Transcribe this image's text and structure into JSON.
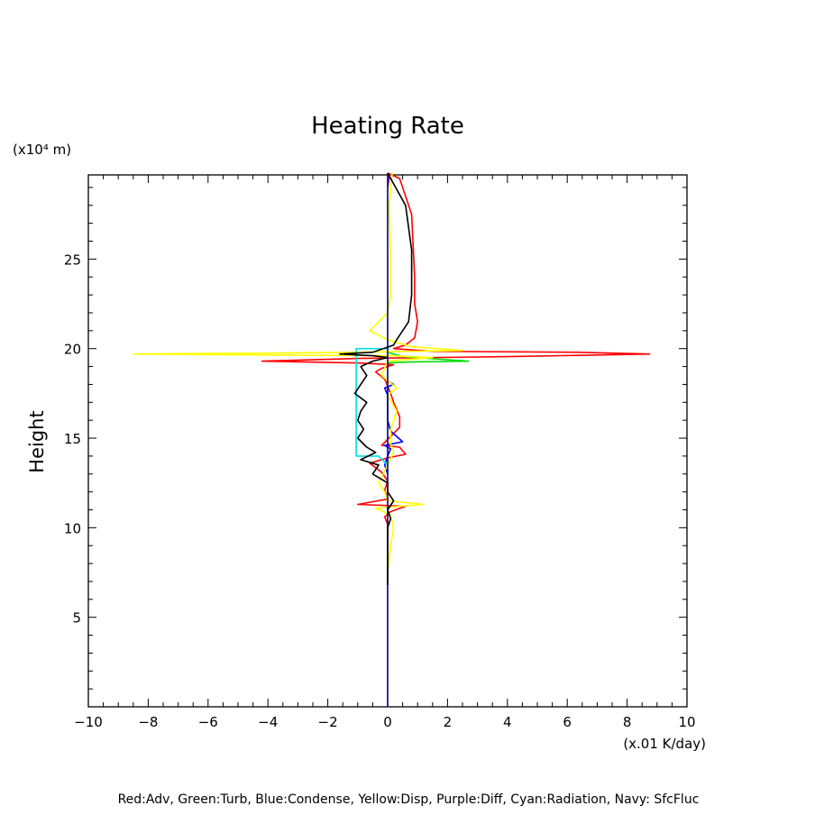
{
  "chart_data": {
    "type": "line",
    "title": "Heating Rate",
    "xlabel": "",
    "ylabel": "Height",
    "x_unit": "(x.01 K/day)",
    "y_unit": "(x10⁴ m)",
    "xlim": [
      -10,
      10
    ],
    "ylim": [
      0,
      29.7
    ],
    "xticks": [
      -10,
      -8,
      -6,
      -4,
      -2,
      0,
      2,
      4,
      6,
      8,
      10
    ],
    "yticks": [
      5,
      10,
      15,
      20,
      25
    ],
    "grid": false,
    "legend_text": "Red:Adv, Green:Turb, Blue:Condense, Yellow:Disp, Purple:Diff, Cyan:Radiation, Navy: SfcFluc",
    "legend_placement": "bottom",
    "series": [
      {
        "name": "Adv",
        "color": "#ff0000",
        "points": [
          [
            0.0,
            29.8
          ],
          [
            0.4,
            29.5
          ],
          [
            0.8,
            27.5
          ],
          [
            0.9,
            24
          ],
          [
            0.9,
            22.5
          ],
          [
            1.0,
            21.5
          ],
          [
            0.9,
            20.6
          ],
          [
            0.6,
            20.2
          ],
          [
            0.2,
            20.0
          ],
          [
            1.5,
            19.85
          ],
          [
            6.3,
            19.8
          ],
          [
            8.75,
            19.7
          ],
          [
            4.0,
            19.55
          ],
          [
            -1.0,
            19.45
          ],
          [
            -4.2,
            19.3
          ],
          [
            -1.0,
            19.2
          ],
          [
            0.2,
            19.1
          ],
          [
            -0.2,
            18.9
          ],
          [
            -0.4,
            18.7
          ],
          [
            -0.1,
            18.3
          ],
          [
            0.1,
            17.5
          ],
          [
            0.2,
            17.0
          ],
          [
            0.4,
            16.2
          ],
          [
            0.4,
            15.6
          ],
          [
            0.1,
            15.1
          ],
          [
            -0.2,
            14.6
          ],
          [
            0.4,
            14.5
          ],
          [
            0.6,
            14.1
          ],
          [
            0.0,
            13.9
          ],
          [
            -0.6,
            13.6
          ],
          [
            -0.2,
            13.1
          ],
          [
            0.0,
            12.6
          ],
          [
            -0.1,
            12.1
          ],
          [
            0.0,
            11.6
          ],
          [
            -1.0,
            11.3
          ],
          [
            0.6,
            11.2
          ],
          [
            0.1,
            10.9
          ],
          [
            -0.1,
            10.6
          ],
          [
            0.0,
            10.2
          ],
          [
            0.0,
            9.5
          ],
          [
            0.0,
            9.0
          ]
        ]
      },
      {
        "name": "Turb",
        "color": "#00dd00",
        "points": [
          [
            0.0,
            19.8
          ],
          [
            0.5,
            19.55
          ],
          [
            2.7,
            19.3
          ],
          [
            0.6,
            19.25
          ],
          [
            0.0,
            19.2
          ]
        ]
      },
      {
        "name": "Condense",
        "color": "#0000ff",
        "points": [
          [
            0.0,
            18.2
          ],
          [
            0.2,
            18.0
          ],
          [
            -0.1,
            17.8
          ],
          [
            0.0,
            17.4
          ],
          [
            0.0,
            16.0
          ],
          [
            0.1,
            15.4
          ],
          [
            0.5,
            14.8
          ],
          [
            -0.1,
            14.6
          ],
          [
            0.1,
            14.4
          ],
          [
            0.0,
            14.0
          ],
          [
            -0.1,
            13.5
          ],
          [
            0.0,
            13.0
          ]
        ]
      },
      {
        "name": "Disp",
        "color": "#ffff00",
        "points": [
          [
            0.15,
            29.8
          ],
          [
            0.05,
            28
          ],
          [
            0.1,
            25
          ],
          [
            0.1,
            23
          ],
          [
            0.0,
            22
          ],
          [
            -0.6,
            21
          ],
          [
            0.0,
            20.5
          ],
          [
            0.8,
            20.1
          ],
          [
            2.5,
            19.9
          ],
          [
            -1.0,
            19.8
          ],
          [
            -4.0,
            19.75
          ],
          [
            -8.5,
            19.7
          ],
          [
            -5.0,
            19.65
          ],
          [
            0.0,
            19.6
          ],
          [
            1.5,
            19.5
          ],
          [
            0.0,
            19.3
          ],
          [
            -0.2,
            18.5
          ],
          [
            0.3,
            17.8
          ],
          [
            0.0,
            17.4
          ],
          [
            0.3,
            16.5
          ],
          [
            0.1,
            15.5
          ],
          [
            0.1,
            14.7
          ],
          [
            0.2,
            14.2
          ],
          [
            0.0,
            13.5
          ],
          [
            -0.3,
            12.5
          ],
          [
            -0.1,
            12.0
          ],
          [
            0.0,
            11.5
          ],
          [
            1.2,
            11.3
          ],
          [
            -0.4,
            11.1
          ],
          [
            0.1,
            10.7
          ],
          [
            0.2,
            10.0
          ],
          [
            0.1,
            9.0
          ],
          [
            0.0,
            7.5
          ]
        ]
      },
      {
        "name": "Diff",
        "color": "#b000b0",
        "points": [
          [
            0.0,
            29.8
          ],
          [
            0.05,
            29.5
          ],
          [
            0.0,
            29.0
          ]
        ]
      },
      {
        "name": "Radiation",
        "color": "#00e0e0",
        "points": [
          [
            0.0,
            20.0
          ],
          [
            -1.05,
            20.0
          ],
          [
            -1.05,
            14.0
          ],
          [
            -0.3,
            14.0
          ],
          [
            0.0,
            13.5
          ]
        ]
      },
      {
        "name": "SfcFluc",
        "color": "#000080",
        "points": [
          [
            0.0,
            29.8
          ],
          [
            0.0,
            0.0
          ]
        ]
      },
      {
        "name": "",
        "color": "#000000",
        "points": [
          [
            0.0,
            29.8
          ],
          [
            0.6,
            28.0
          ],
          [
            0.8,
            25.5
          ],
          [
            0.8,
            23.0
          ],
          [
            0.7,
            21.5
          ],
          [
            0.3,
            20.5
          ],
          [
            0.2,
            20.2
          ],
          [
            -0.5,
            19.8
          ],
          [
            -1.6,
            19.7
          ],
          [
            -0.5,
            19.6
          ],
          [
            0.0,
            19.5
          ],
          [
            -0.5,
            19.3
          ],
          [
            -0.9,
            19.0
          ],
          [
            -0.7,
            18.5
          ],
          [
            -0.9,
            18.0
          ],
          [
            -1.1,
            17.5
          ],
          [
            -0.7,
            17.0
          ],
          [
            -0.9,
            16.5
          ],
          [
            -1.0,
            16.0
          ],
          [
            -0.8,
            15.5
          ],
          [
            -1.0,
            15.0
          ],
          [
            -0.7,
            14.5
          ],
          [
            -0.4,
            14.2
          ],
          [
            -0.9,
            13.8
          ],
          [
            -0.3,
            13.5
          ],
          [
            -0.5,
            13.0
          ],
          [
            0.0,
            12.5
          ],
          [
            0.0,
            12.0
          ],
          [
            0.2,
            11.5
          ],
          [
            0.0,
            11.0
          ],
          [
            0.1,
            10.5
          ],
          [
            0.0,
            10.0
          ],
          [
            0.0,
            8.0
          ],
          [
            0.0,
            6.8
          ]
        ]
      }
    ]
  }
}
